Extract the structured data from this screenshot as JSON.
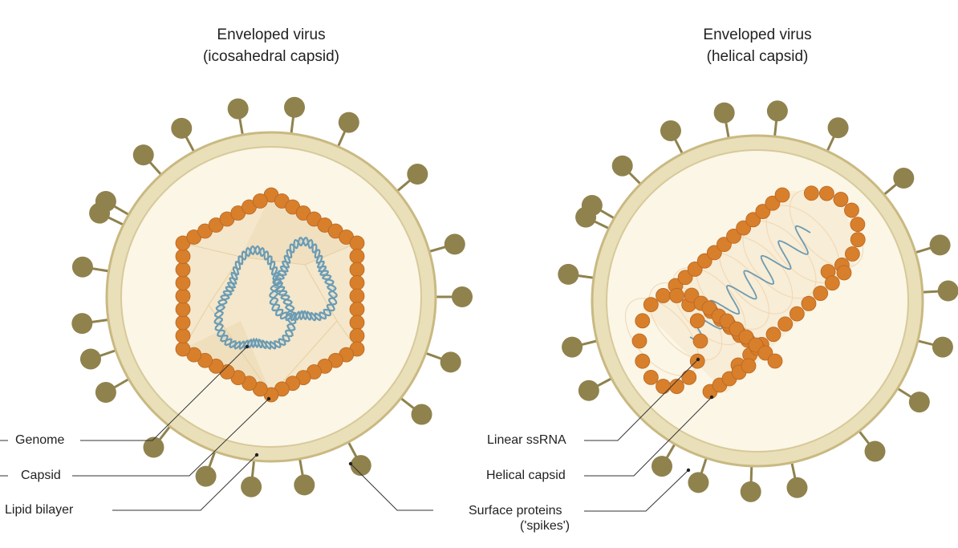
{
  "panels": [
    {
      "title_line1": "Enveloped virus",
      "title_line2": "(icosahedral capsid)"
    },
    {
      "title_line1": "Enveloped virus",
      "title_line2": "(helical capsid)"
    }
  ],
  "labels": {
    "genome": "Genome",
    "capsid": "Capsid",
    "lipid_bilayer": "Lipid bilayer",
    "linear_ssrna": "Linear ssRNA",
    "helical_capsid": "Helical capsid",
    "surface_proteins_line1": "Surface proteins",
    "surface_proteins_line2": "('spikes')"
  },
  "colors": {
    "envelope": "#e9dfb9",
    "envelope_stroke": "#c9b982",
    "interior": "#fbf6e6",
    "spike": "#8f824d",
    "capsomere": "#d87f2c",
    "capsomere_dark": "#b96520",
    "genome": "#6c9bb2",
    "leader": "#333333"
  }
}
